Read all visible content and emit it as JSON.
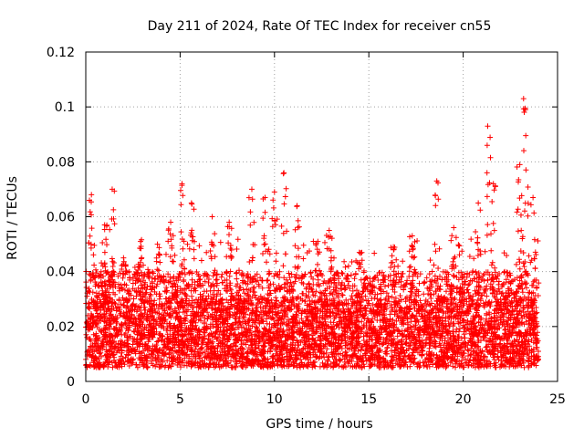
{
  "chart_data": {
    "type": "scatter",
    "title": "Day 211 of 2024, Rate Of TEC Index for receiver cn55",
    "xlabel": "GPS time / hours",
    "ylabel": "ROTI / TECUs",
    "xlim": [
      0,
      25
    ],
    "ylim": [
      0,
      0.12
    ],
    "xticks": [
      0,
      5,
      10,
      15,
      20,
      25
    ],
    "xtick_labels": [
      "0",
      "5",
      "10",
      "15",
      "20",
      "25"
    ],
    "yticks": [
      0,
      0.02,
      0.04,
      0.06,
      0.08,
      0.1,
      0.12
    ],
    "ytick_labels": [
      "0",
      "0.02",
      "0.04",
      "0.06",
      "0.08",
      "0.1",
      "0.12"
    ],
    "grid": true,
    "marker": "+",
    "color": "#ff0000",
    "series": [
      {
        "name": "ROTI",
        "x_range_hours": [
          0,
          24
        ],
        "bulk_band": [
          0.005,
          0.03
        ],
        "typical_upper": 0.04,
        "peaks": [
          {
            "x": 0.3,
            "y": 0.068
          },
          {
            "x": 1.0,
            "y": 0.057
          },
          {
            "x": 1.4,
            "y": 0.07
          },
          {
            "x": 2.0,
            "y": 0.045
          },
          {
            "x": 2.9,
            "y": 0.051
          },
          {
            "x": 3.8,
            "y": 0.05
          },
          {
            "x": 4.5,
            "y": 0.058
          },
          {
            "x": 5.1,
            "y": 0.072
          },
          {
            "x": 5.6,
            "y": 0.065
          },
          {
            "x": 6.7,
            "y": 0.06
          },
          {
            "x": 7.6,
            "y": 0.058
          },
          {
            "x": 8.8,
            "y": 0.07
          },
          {
            "x": 9.5,
            "y": 0.067
          },
          {
            "x": 10.0,
            "y": 0.069
          },
          {
            "x": 10.5,
            "y": 0.076
          },
          {
            "x": 11.2,
            "y": 0.064
          },
          {
            "x": 12.3,
            "y": 0.051
          },
          {
            "x": 12.9,
            "y": 0.055
          },
          {
            "x": 14.5,
            "y": 0.047
          },
          {
            "x": 16.3,
            "y": 0.049
          },
          {
            "x": 17.3,
            "y": 0.053
          },
          {
            "x": 18.6,
            "y": 0.073
          },
          {
            "x": 19.5,
            "y": 0.056
          },
          {
            "x": 20.8,
            "y": 0.065
          },
          {
            "x": 21.3,
            "y": 0.093
          },
          {
            "x": 21.6,
            "y": 0.072
          },
          {
            "x": 23.0,
            "y": 0.079
          },
          {
            "x": 23.2,
            "y": 0.103
          },
          {
            "x": 23.3,
            "y": 0.099
          },
          {
            "x": 23.7,
            "y": 0.067
          }
        ]
      }
    ]
  }
}
